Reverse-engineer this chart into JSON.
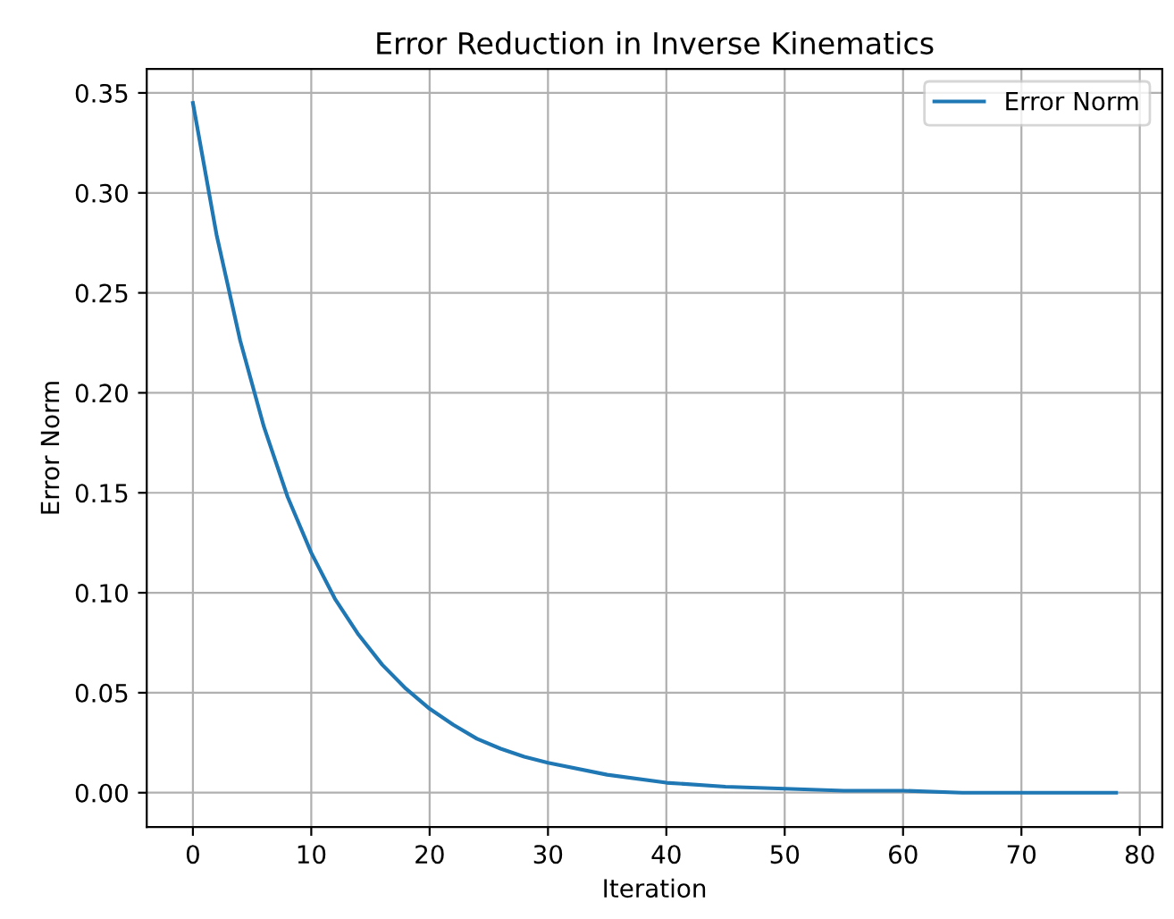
{
  "chart_data": {
    "type": "line",
    "title": "Error Reduction in Inverse Kinematics",
    "xlabel": "Iteration",
    "ylabel": "Error Norm",
    "x": [
      0,
      2,
      4,
      6,
      8,
      10,
      12,
      14,
      16,
      18,
      20,
      22,
      24,
      26,
      28,
      30,
      35,
      40,
      45,
      50,
      55,
      60,
      65,
      70,
      78
    ],
    "series": [
      {
        "name": "Error Norm",
        "color": "#1f77b4",
        "values": [
          0.345,
          0.279,
          0.226,
          0.183,
          0.148,
          0.12,
          0.097,
          0.079,
          0.064,
          0.052,
          0.042,
          0.034,
          0.027,
          0.022,
          0.018,
          0.015,
          0.009,
          0.005,
          0.003,
          0.002,
          0.001,
          0.001,
          0,
          0,
          0
        ]
      }
    ],
    "xlim": [
      -3.9,
      81.9
    ],
    "ylim": [
      -0.0172,
      0.362
    ],
    "xticks": [
      0,
      10,
      20,
      30,
      40,
      50,
      60,
      70,
      80
    ],
    "yticks": [
      {
        "value": 0,
        "label": "0.00"
      },
      {
        "value": 0.05,
        "label": "0.05"
      },
      {
        "value": 0.1,
        "label": "0.10"
      },
      {
        "value": 0.15,
        "label": "0.15"
      },
      {
        "value": 0.2,
        "label": "0.20"
      },
      {
        "value": 0.25,
        "label": "0.25"
      },
      {
        "value": 0.3,
        "label": "0.30"
      },
      {
        "value": 0.35,
        "label": "0.35"
      }
    ],
    "grid": true,
    "legend": "top right",
    "marker": "none",
    "line_style": "solid"
  }
}
